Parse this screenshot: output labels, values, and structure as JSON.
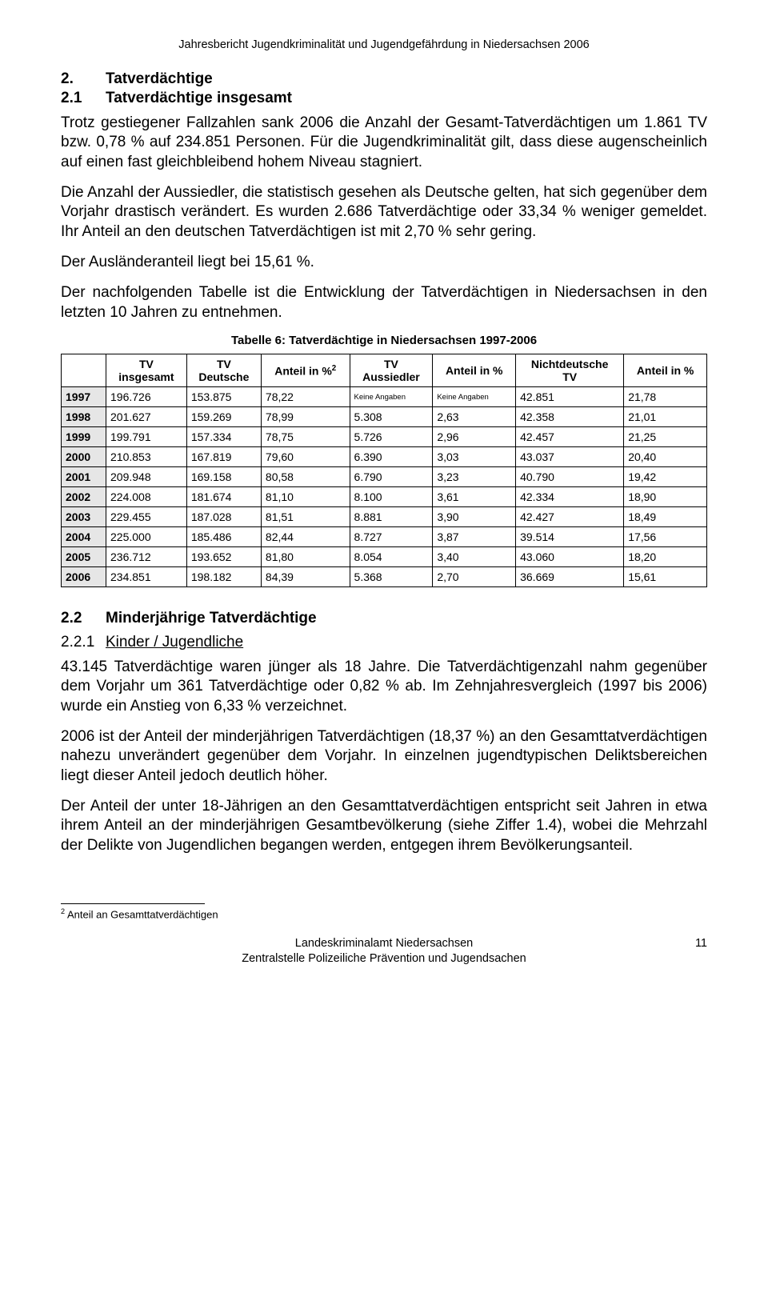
{
  "header": "Jahresbericht Jugendkriminalität und Jugendgefährdung in Niedersachsen 2006",
  "s2": {
    "num": "2.",
    "title": "Tatverdächtige"
  },
  "s21": {
    "num": "2.1",
    "title": "Tatverdächtige insgesamt"
  },
  "p1": "Trotz gestiegener Fallzahlen sank 2006 die Anzahl der Gesamt-Tatverdächtigen um 1.861 TV bzw. 0,78 % auf 234.851 Personen. Für die Jugendkriminalität gilt, dass diese augenscheinlich auf einen fast gleichbleibend hohem Niveau stagniert.",
  "p2": "Die Anzahl der Aussiedler, die statistisch gesehen als Deutsche gelten, hat sich gegenüber dem Vorjahr drastisch verändert. Es wurden 2.686 Tatverdächtige oder 33,34 % weniger gemeldet. Ihr Anteil an den deutschen Tatverdächtigen ist mit 2,70 % sehr gering.",
  "p3": "Der Ausländeranteil liegt bei 15,61 %.",
  "p4": "Der nachfolgenden Tabelle ist die Entwicklung der Tatverdächtigen in Niedersachsen in den letzten 10 Jahren zu entnehmen.",
  "table6": {
    "caption": "Tabelle 6: Tatverdächtige in Niedersachsen 1997-2006",
    "head": {
      "c0": "",
      "c1a": "TV",
      "c1b": "insgesamt",
      "c2a": "TV",
      "c2b": "Deutsche",
      "c3": "Anteil in %",
      "c3sup": "2",
      "c4a": "TV",
      "c4b": "Aussiedler",
      "c5": "Anteil in %",
      "c6a": "Nichtdeutsche",
      "c6b": "TV",
      "c7": "Anteil in %"
    },
    "rows": [
      {
        "y": "1997",
        "c1": "196.726",
        "c2": "153.875",
        "c3": "78,22",
        "c4": "Keine Angaben",
        "c5": "Keine Angaben",
        "c6": "42.851",
        "c7": "21,78",
        "small45": true
      },
      {
        "y": "1998",
        "c1": "201.627",
        "c2": "159.269",
        "c3": "78,99",
        "c4": "5.308",
        "c5": "2,63",
        "c6": "42.358",
        "c7": "21,01"
      },
      {
        "y": "1999",
        "c1": "199.791",
        "c2": "157.334",
        "c3": "78,75",
        "c4": "5.726",
        "c5": "2,96",
        "c6": "42.457",
        "c7": "21,25"
      },
      {
        "y": "2000",
        "c1": "210.853",
        "c2": "167.819",
        "c3": "79,60",
        "c4": "6.390",
        "c5": "3,03",
        "c6": "43.037",
        "c7": "20,40"
      },
      {
        "y": "2001",
        "c1": "209.948",
        "c2": "169.158",
        "c3": "80,58",
        "c4": "6.790",
        "c5": "3,23",
        "c6": "40.790",
        "c7": "19,42"
      },
      {
        "y": "2002",
        "c1": "224.008",
        "c2": "181.674",
        "c3": "81,10",
        "c4": "8.100",
        "c5": "3,61",
        "c6": "42.334",
        "c7": "18,90"
      },
      {
        "y": "2003",
        "c1": "229.455",
        "c2": "187.028",
        "c3": "81,51",
        "c4": "8.881",
        "c5": "3,90",
        "c6": "42.427",
        "c7": "18,49"
      },
      {
        "y": "2004",
        "c1": "225.000",
        "c2": "185.486",
        "c3": "82,44",
        "c4": "8.727",
        "c5": "3,87",
        "c6": "39.514",
        "c7": "17,56"
      },
      {
        "y": "2005",
        "c1": "236.712",
        "c2": "193.652",
        "c3": "81,80",
        "c4": "8.054",
        "c5": "3,40",
        "c6": "43.060",
        "c7": "18,20"
      },
      {
        "y": "2006",
        "c1": "234.851",
        "c2": "198.182",
        "c3": "84,39",
        "c4": "5.368",
        "c5": "2,70",
        "c6": "36.669",
        "c7": "15,61"
      }
    ]
  },
  "s22": {
    "num": "2.2",
    "title": "Minderjährige Tatverdächtige"
  },
  "s221": {
    "num": "2.2.1",
    "title": "Kinder / Jugendliche"
  },
  "p5": "43.145 Tatverdächtige waren jünger als 18 Jahre. Die Tatverdächtigenzahl nahm gegenüber dem Vorjahr um 361 Tatverdächtige oder 0,82 % ab. Im Zehnjahresvergleich (1997 bis 2006) wurde ein Anstieg von 6,33 % verzeichnet.",
  "p6": "2006 ist der Anteil der minderjährigen Tatverdächtigen (18,37 %) an den Gesamttatverdächtigen nahezu unverändert gegenüber dem Vorjahr. In einzelnen jugendtypischen Deliktsbereichen liegt dieser Anteil jedoch deutlich höher.",
  "p7": "Der Anteil der unter 18-Jährigen an den Gesamttatverdächtigen entspricht seit Jahren in etwa ihrem Anteil an der minderjährigen Gesamtbevölkerung (siehe Ziffer 1.4), wobei die Mehrzahl der Delikte von Jugendlichen begangen werden, entgegen ihrem Bevölkerungsanteil.",
  "footnote": {
    "marker": "2",
    "text": " Anteil an Gesamttatverdächtigen"
  },
  "footer": {
    "l1": "Landeskriminalamt Niedersachsen",
    "l2": "Zentralstelle Polizeiliche Prävention und Jugendsachen",
    "page": "11"
  }
}
